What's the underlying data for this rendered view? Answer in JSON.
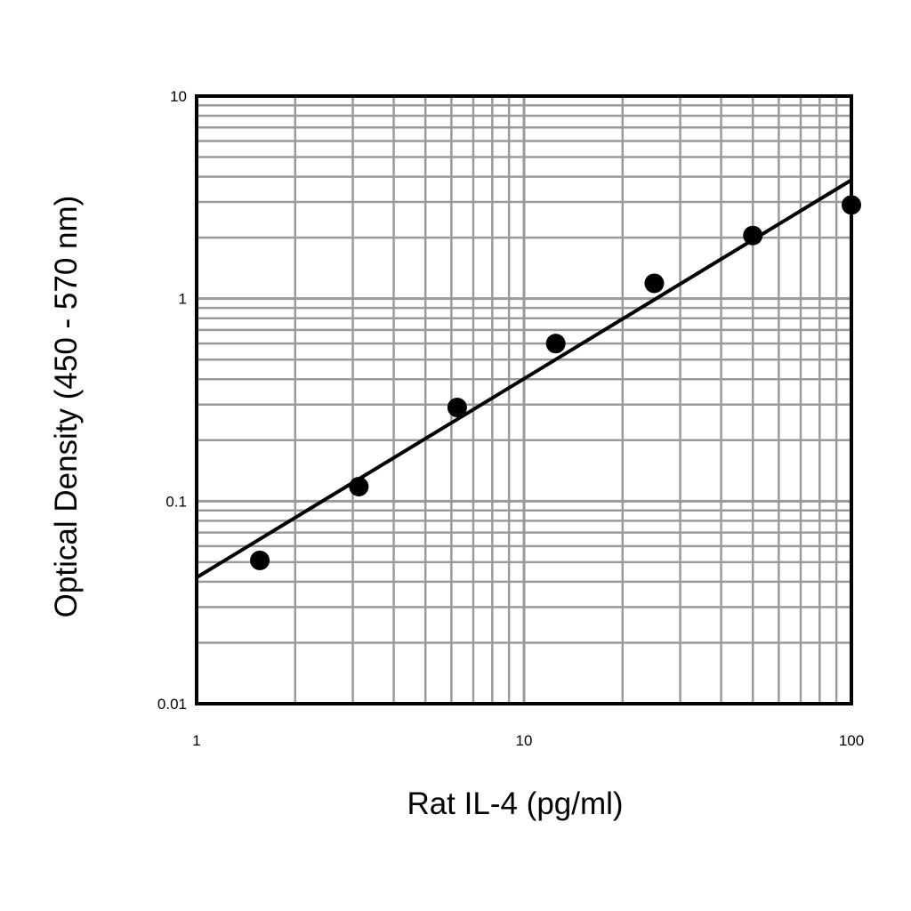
{
  "chart_data": {
    "type": "scatter",
    "title": "",
    "xlabel": "Rat IL-4 (pg/ml)",
    "ylabel": "Optical Density (450 - 570 nm)",
    "x_scale": "log",
    "y_scale": "log",
    "xlim": [
      1,
      100
    ],
    "ylim": [
      0.01,
      10
    ],
    "x_ticks": [
      "1",
      "10",
      "100"
    ],
    "y_ticks": [
      "0.01",
      "0.1",
      "1",
      "10"
    ],
    "grid": true,
    "series": [
      {
        "kind": "points",
        "x": [
          1.56,
          3.13,
          6.25,
          12.5,
          25,
          50,
          100
        ],
        "y": [
          0.051,
          0.118,
          0.29,
          0.6,
          1.19,
          2.05,
          2.9
        ]
      },
      {
        "kind": "fit-line",
        "x": [
          1,
          100
        ],
        "y": [
          0.042,
          3.85
        ]
      }
    ],
    "colors": {
      "points": "#000000",
      "fit_line": "#000000",
      "grid": "#9a9a9a",
      "frame": "#000000"
    }
  }
}
